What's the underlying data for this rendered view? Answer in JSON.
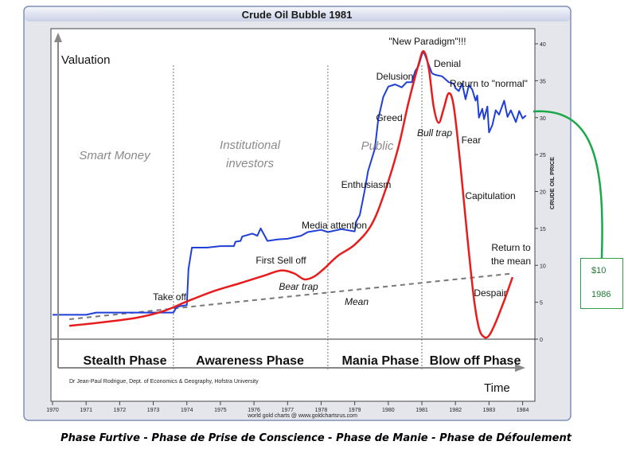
{
  "title": "Crude Oil Bubble 1981",
  "caption": "Phase Furtive - Phase de Prise de Conscience - Phase de Manie - Phase de Défoulement",
  "credit": "Dr Jean-Paul Rodrigue, Dept. of Economics & Geography, Hofstra University",
  "source": "world gold charts @ www.goldchartsrus.com",
  "price_box": {
    "value": "$10",
    "year": "1986"
  },
  "colors": {
    "price_line": "#1f3fd6",
    "bubble_curve": "#e81c1c",
    "mean_line": "#777777",
    "connector": "#1aa84a",
    "frame": "#6a7eb0"
  },
  "chart_data": {
    "type": "line",
    "title": "Crude Oil Bubble 1981",
    "xlabel": "Time",
    "ylabel_left": "Valuation",
    "ylabel_right": "CRUDE OIL PRICE",
    "xlim": [
      1970,
      1984.2
    ],
    "ylim": [
      0,
      40
    ],
    "x_ticks": [
      "1970",
      "1971",
      "1972",
      "1973",
      "1974",
      "1975",
      "1976",
      "1977",
      "1978",
      "1979",
      "1980",
      "1981",
      "1982",
      "1983",
      "1984"
    ],
    "y_ticks": [
      "0",
      "5",
      "10",
      "15",
      "20",
      "25",
      "30",
      "35",
      "40"
    ],
    "phases": [
      {
        "name": "Stealth Phase",
        "start": 1970,
        "end": 1973.6
      },
      {
        "name": "Awareness Phase",
        "start": 1973.6,
        "end": 1978.2
      },
      {
        "name": "Mania Phase",
        "start": 1978.2,
        "end": 1981.0
      },
      {
        "name": "Blow off Phase",
        "start": 1981.0,
        "end": 1984.2
      }
    ],
    "phase_dividers": [
      1973.6,
      1978.2,
      1981.0
    ],
    "zone_labels": [
      "Smart Money",
      "Institutional investors",
      "Public"
    ],
    "annotations": [
      "Take off",
      "First Sell off",
      "Bear trap",
      "Media attention",
      "Mean",
      "Enthusiasm",
      "Greed",
      "Delusion",
      "\"New Paradigm\"!!!",
      "Denial",
      "Bull trap",
      "Return to \"normal\"",
      "Fear",
      "Capitulation",
      "Despair",
      "Return to the mean"
    ],
    "series": [
      {
        "name": "Crude oil price",
        "points": [
          [
            1970,
            3.3
          ],
          [
            1971,
            3.3
          ],
          [
            1971.3,
            3.6
          ],
          [
            1972,
            3.6
          ],
          [
            1973,
            3.6
          ],
          [
            1973.6,
            3.6
          ],
          [
            1973.7,
            4.4
          ],
          [
            1974,
            4.6
          ],
          [
            1974.05,
            9.5
          ],
          [
            1974.15,
            12.4
          ],
          [
            1974.6,
            12.4
          ],
          [
            1975,
            12.6
          ],
          [
            1975.4,
            12.6
          ],
          [
            1975.45,
            13.2
          ],
          [
            1975.6,
            13.3
          ],
          [
            1975.65,
            13.9
          ],
          [
            1975.95,
            14.3
          ],
          [
            1976.1,
            14.0
          ],
          [
            1976.2,
            15.0
          ],
          [
            1976.4,
            13.3
          ],
          [
            1976.7,
            13.5
          ],
          [
            1977,
            13.6
          ],
          [
            1977.4,
            14.0
          ],
          [
            1977.6,
            14.5
          ],
          [
            1978,
            14.8
          ],
          [
            1978.2,
            14.5
          ],
          [
            1978.6,
            14.9
          ],
          [
            1979,
            14.6
          ],
          [
            1979.05,
            16.0
          ],
          [
            1979.15,
            16.8
          ],
          [
            1979.3,
            20.2
          ],
          [
            1979.4,
            22.8
          ],
          [
            1979.6,
            25.8
          ],
          [
            1979.7,
            29.8
          ],
          [
            1979.85,
            32.8
          ],
          [
            1980.0,
            34.2
          ],
          [
            1980.2,
            34.5
          ],
          [
            1980.4,
            34.1
          ],
          [
            1980.55,
            34.8
          ],
          [
            1980.7,
            34.8
          ],
          [
            1980.8,
            36.3
          ],
          [
            1980.9,
            37.0
          ],
          [
            1981.0,
            38.5
          ],
          [
            1981.05,
            39.0
          ],
          [
            1981.15,
            37.8
          ],
          [
            1981.3,
            36.0
          ],
          [
            1981.4,
            35.8
          ],
          [
            1981.6,
            35.6
          ],
          [
            1981.8,
            34.8
          ],
          [
            1981.95,
            34.6
          ],
          [
            1982.0,
            34.0
          ],
          [
            1982.1,
            33.6
          ],
          [
            1982.2,
            34.6
          ],
          [
            1982.3,
            32.5
          ],
          [
            1982.4,
            34.4
          ],
          [
            1982.5,
            33.8
          ],
          [
            1982.6,
            32.3
          ],
          [
            1982.65,
            33.0
          ],
          [
            1982.7,
            30.0
          ],
          [
            1982.8,
            31.2
          ],
          [
            1982.85,
            29.8
          ],
          [
            1982.95,
            31.5
          ],
          [
            1983.0,
            28.0
          ],
          [
            1983.1,
            29.0
          ],
          [
            1983.2,
            31.0
          ],
          [
            1983.3,
            30.4
          ],
          [
            1983.45,
            32.3
          ],
          [
            1983.55,
            30.1
          ],
          [
            1983.65,
            31.0
          ],
          [
            1983.8,
            29.4
          ],
          [
            1983.9,
            30.9
          ],
          [
            1984.0,
            29.9
          ],
          [
            1984.1,
            30.3
          ]
        ]
      },
      {
        "name": "Bubble valuation curve",
        "points": [
          [
            1970.5,
            1.8
          ],
          [
            1971.5,
            2.3
          ],
          [
            1972.5,
            2.9
          ],
          [
            1973.3,
            3.8
          ],
          [
            1974,
            5.1
          ],
          [
            1974.8,
            6.5
          ],
          [
            1975.6,
            7.6
          ],
          [
            1976.3,
            8.6
          ],
          [
            1976.8,
            9.3
          ],
          [
            1977.2,
            8.9
          ],
          [
            1977.5,
            8.1
          ],
          [
            1977.8,
            8.5
          ],
          [
            1978.1,
            9.6
          ],
          [
            1978.5,
            11.3
          ],
          [
            1979.0,
            12.8
          ],
          [
            1979.5,
            15.5
          ],
          [
            1979.9,
            20.0
          ],
          [
            1980.3,
            26.0
          ],
          [
            1980.6,
            32.0
          ],
          [
            1980.9,
            37.2
          ],
          [
            1981.05,
            39.0
          ],
          [
            1981.2,
            36.8
          ],
          [
            1981.35,
            31.5
          ],
          [
            1981.5,
            29.3
          ],
          [
            1981.65,
            31.2
          ],
          [
            1981.8,
            33.3
          ],
          [
            1981.95,
            31.5
          ],
          [
            1982.15,
            23.5
          ],
          [
            1982.35,
            14.0
          ],
          [
            1982.55,
            5.5
          ],
          [
            1982.7,
            1.5
          ],
          [
            1982.85,
            0.3
          ],
          [
            1983.0,
            0.5
          ],
          [
            1983.2,
            2.3
          ],
          [
            1983.45,
            5.2
          ],
          [
            1983.7,
            8.4
          ]
        ]
      },
      {
        "name": "Mean",
        "points": [
          [
            1970.5,
            2.7
          ],
          [
            1983.7,
            8.9
          ]
        ]
      }
    ]
  }
}
